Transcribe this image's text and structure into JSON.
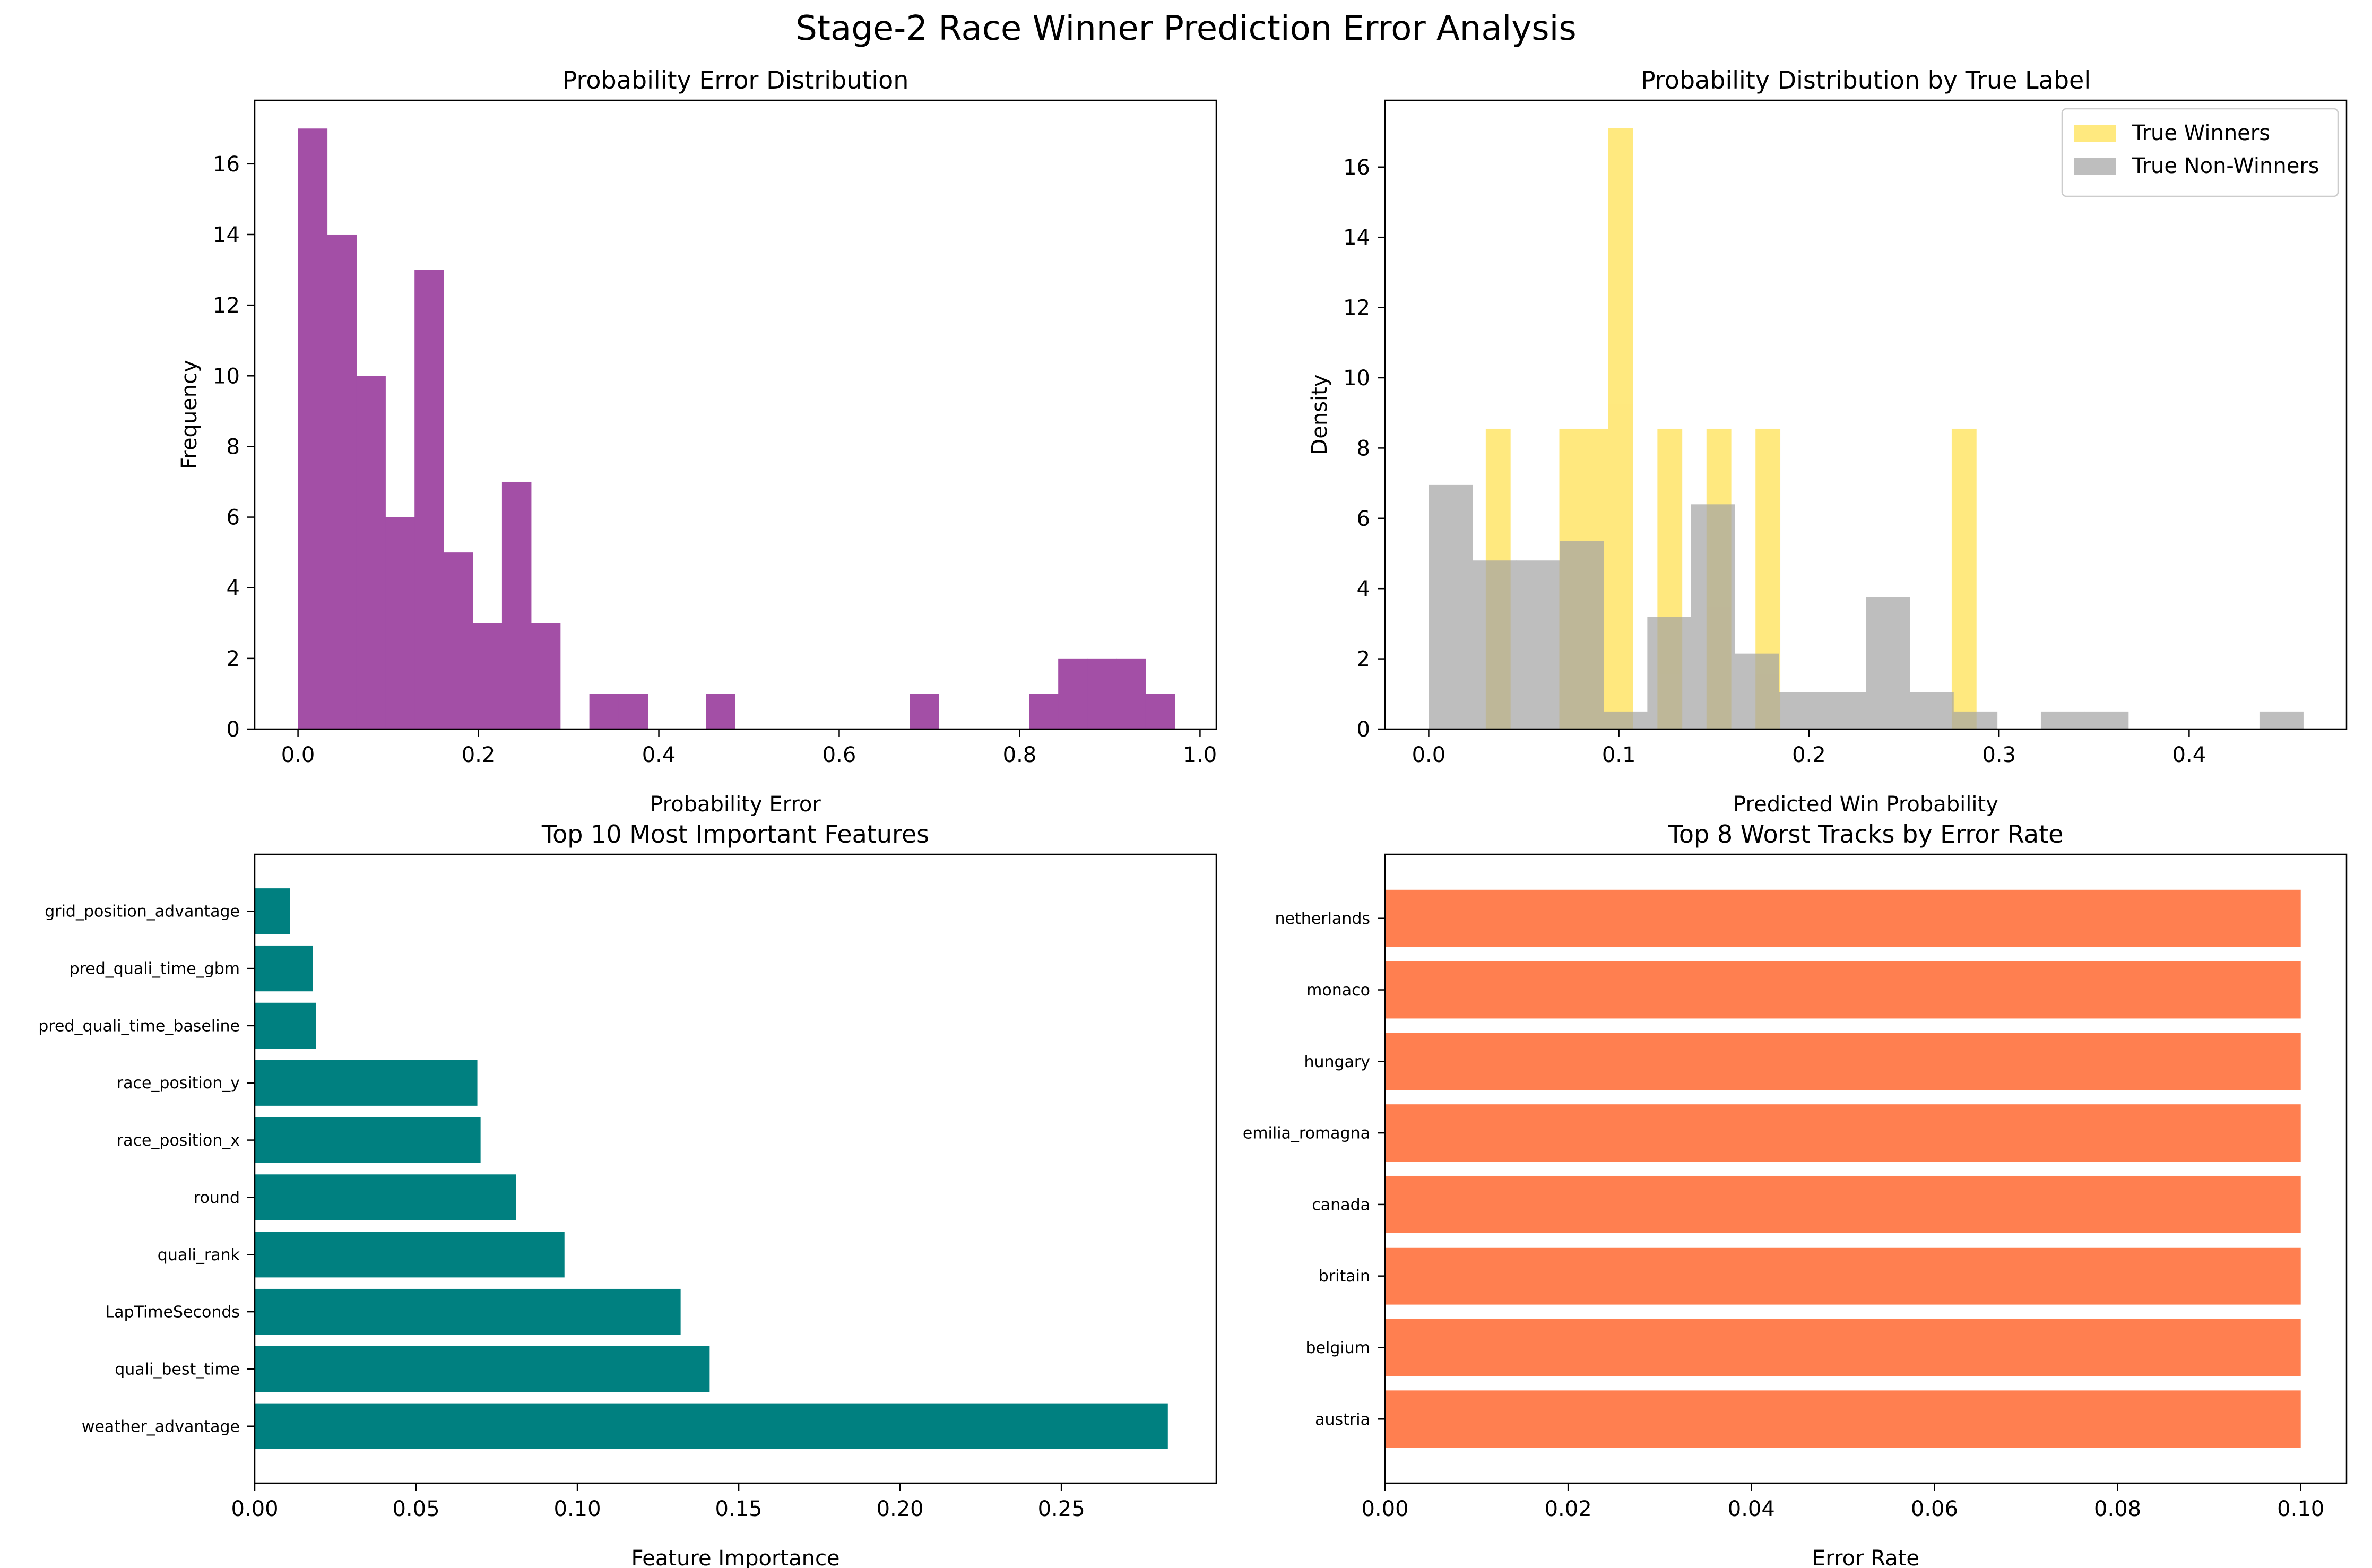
{
  "figure": {
    "title": "Stage-2 Race Winner Prediction Error Analysis"
  },
  "colors": {
    "purple": "#a34fa6",
    "yellow": "#ffdf48",
    "gray": "#a3a3a3",
    "teal": "#008080",
    "coral": "#ff7f50",
    "axis": "#000000"
  },
  "chart_data": [
    {
      "type": "bar",
      "title": "Probability Error Distribution",
      "xlabel": "Probability Error",
      "ylabel": "Frequency",
      "xlim": [
        -0.048,
        1.018
      ],
      "ylim": [
        0,
        17.8
      ],
      "xticks": [
        0.0,
        0.2,
        0.4,
        0.6,
        0.8,
        1.0
      ],
      "xtick_labels": [
        "0.0",
        "0.2",
        "0.4",
        "0.6",
        "0.8",
        "1.0"
      ],
      "yticks": [
        0,
        2,
        4,
        6,
        8,
        10,
        12,
        14,
        16
      ],
      "ytick_labels": [
        "0",
        "2",
        "4",
        "6",
        "8",
        "10",
        "12",
        "14",
        "16"
      ],
      "bin_width": 0.0323,
      "bins": [
        {
          "x0": 0.0,
          "value": 17
        },
        {
          "x0": 0.0323,
          "value": 14
        },
        {
          "x0": 0.0646,
          "value": 10
        },
        {
          "x0": 0.0969,
          "value": 6
        },
        {
          "x0": 0.1292,
          "value": 13
        },
        {
          "x0": 0.1615,
          "value": 5
        },
        {
          "x0": 0.1938,
          "value": 3
        },
        {
          "x0": 0.2261,
          "value": 7
        },
        {
          "x0": 0.2584,
          "value": 3
        },
        {
          "x0": 0.323,
          "value": 1
        },
        {
          "x0": 0.3553,
          "value": 1
        },
        {
          "x0": 0.4522,
          "value": 1
        },
        {
          "x0": 0.6782,
          "value": 1
        },
        {
          "x0": 0.8105,
          "value": 1
        },
        {
          "x0": 0.8428,
          "value": 2
        },
        {
          "x0": 0.8751,
          "value": 2
        },
        {
          "x0": 0.9074,
          "value": 2
        },
        {
          "x0": 0.9397,
          "value": 1
        }
      ]
    },
    {
      "type": "bar",
      "title": "Probability Distribution by True Label",
      "xlabel": "Predicted Win Probability",
      "ylabel": "Density",
      "xlim": [
        -0.023,
        0.4828
      ],
      "ylim": [
        0,
        17.9
      ],
      "xticks": [
        0.0,
        0.1,
        0.2,
        0.3,
        0.4
      ],
      "xtick_labels": [
        "0.0",
        "0.1",
        "0.2",
        "0.3",
        "0.4"
      ],
      "yticks": [
        0,
        2,
        4,
        6,
        8,
        10,
        12,
        14,
        16
      ],
      "ytick_labels": [
        "0",
        "2",
        "4",
        "6",
        "8",
        "10",
        "12",
        "14",
        "16"
      ],
      "legend": {
        "position": "top-right",
        "entries": [
          "True Winners",
          "True Non-Winners"
        ]
      },
      "series": [
        {
          "name": "True Winners",
          "color": "#ffdf48",
          "bin_width": 0.0129,
          "bins": [
            {
              "x0": 0.03,
              "value": 8.55
            },
            {
              "x0": 0.0687,
              "value": 8.55
            },
            {
              "x0": 0.0816,
              "value": 8.55
            },
            {
              "x0": 0.0945,
              "value": 17.1
            },
            {
              "x0": 0.1203,
              "value": 8.55
            },
            {
              "x0": 0.1461,
              "value": 8.55
            },
            {
              "x0": 0.1719,
              "value": 8.55
            },
            {
              "x0": 0.2751,
              "value": 8.55
            }
          ]
        },
        {
          "name": "True Non-Winners",
          "color": "#a3a3a3",
          "bin_width": 0.023,
          "bins": [
            {
              "x0": 0.0,
              "value": 6.95
            },
            {
              "x0": 0.023,
              "value": 4.8
            },
            {
              "x0": 0.046,
              "value": 4.8
            },
            {
              "x0": 0.069,
              "value": 5.35
            },
            {
              "x0": 0.092,
              "value": 0.5
            },
            {
              "x0": 0.115,
              "value": 3.2
            },
            {
              "x0": 0.138,
              "value": 6.4
            },
            {
              "x0": 0.161,
              "value": 2.15
            },
            {
              "x0": 0.184,
              "value": 1.05
            },
            {
              "x0": 0.207,
              "value": 1.05
            },
            {
              "x0": 0.23,
              "value": 3.75
            },
            {
              "x0": 0.253,
              "value": 1.05
            },
            {
              "x0": 0.276,
              "value": 0.5
            },
            {
              "x0": 0.322,
              "value": 0.5
            },
            {
              "x0": 0.345,
              "value": 0.5
            },
            {
              "x0": 0.437,
              "value": 0.5
            }
          ]
        }
      ]
    },
    {
      "type": "bar",
      "orientation": "horizontal",
      "title": "Top 10 Most Important Features",
      "xlabel": "Feature Importance",
      "ylabel": "",
      "xlim": [
        0,
        0.298
      ],
      "xticks": [
        0.0,
        0.05,
        0.1,
        0.15,
        0.2,
        0.25
      ],
      "xtick_labels": [
        "0.00",
        "0.05",
        "0.10",
        "0.15",
        "0.20",
        "0.25"
      ],
      "categories": [
        "weather_advantage",
        "quali_best_time",
        "LapTimeSeconds",
        "quali_rank",
        "round",
        "race_position_x",
        "race_position_y",
        "pred_quali_time_baseline",
        "pred_quali_time_gbm",
        "grid_position_advantage"
      ],
      "values": [
        0.283,
        0.141,
        0.132,
        0.096,
        0.081,
        0.07,
        0.069,
        0.019,
        0.018,
        0.011
      ]
    },
    {
      "type": "bar",
      "orientation": "horizontal",
      "title": "Top 8 Worst Tracks by Error Rate",
      "xlabel": "Error Rate",
      "ylabel": "",
      "xlim": [
        0,
        0.105
      ],
      "xticks": [
        0.0,
        0.02,
        0.04,
        0.06,
        0.08,
        0.1
      ],
      "xtick_labels": [
        "0.00",
        "0.02",
        "0.04",
        "0.06",
        "0.08",
        "0.10"
      ],
      "categories": [
        "austria",
        "belgium",
        "britain",
        "canada",
        "emilia_romagna",
        "hungary",
        "monaco",
        "netherlands"
      ],
      "values": [
        0.1,
        0.1,
        0.1,
        0.1,
        0.1,
        0.1,
        0.1,
        0.1
      ]
    }
  ]
}
